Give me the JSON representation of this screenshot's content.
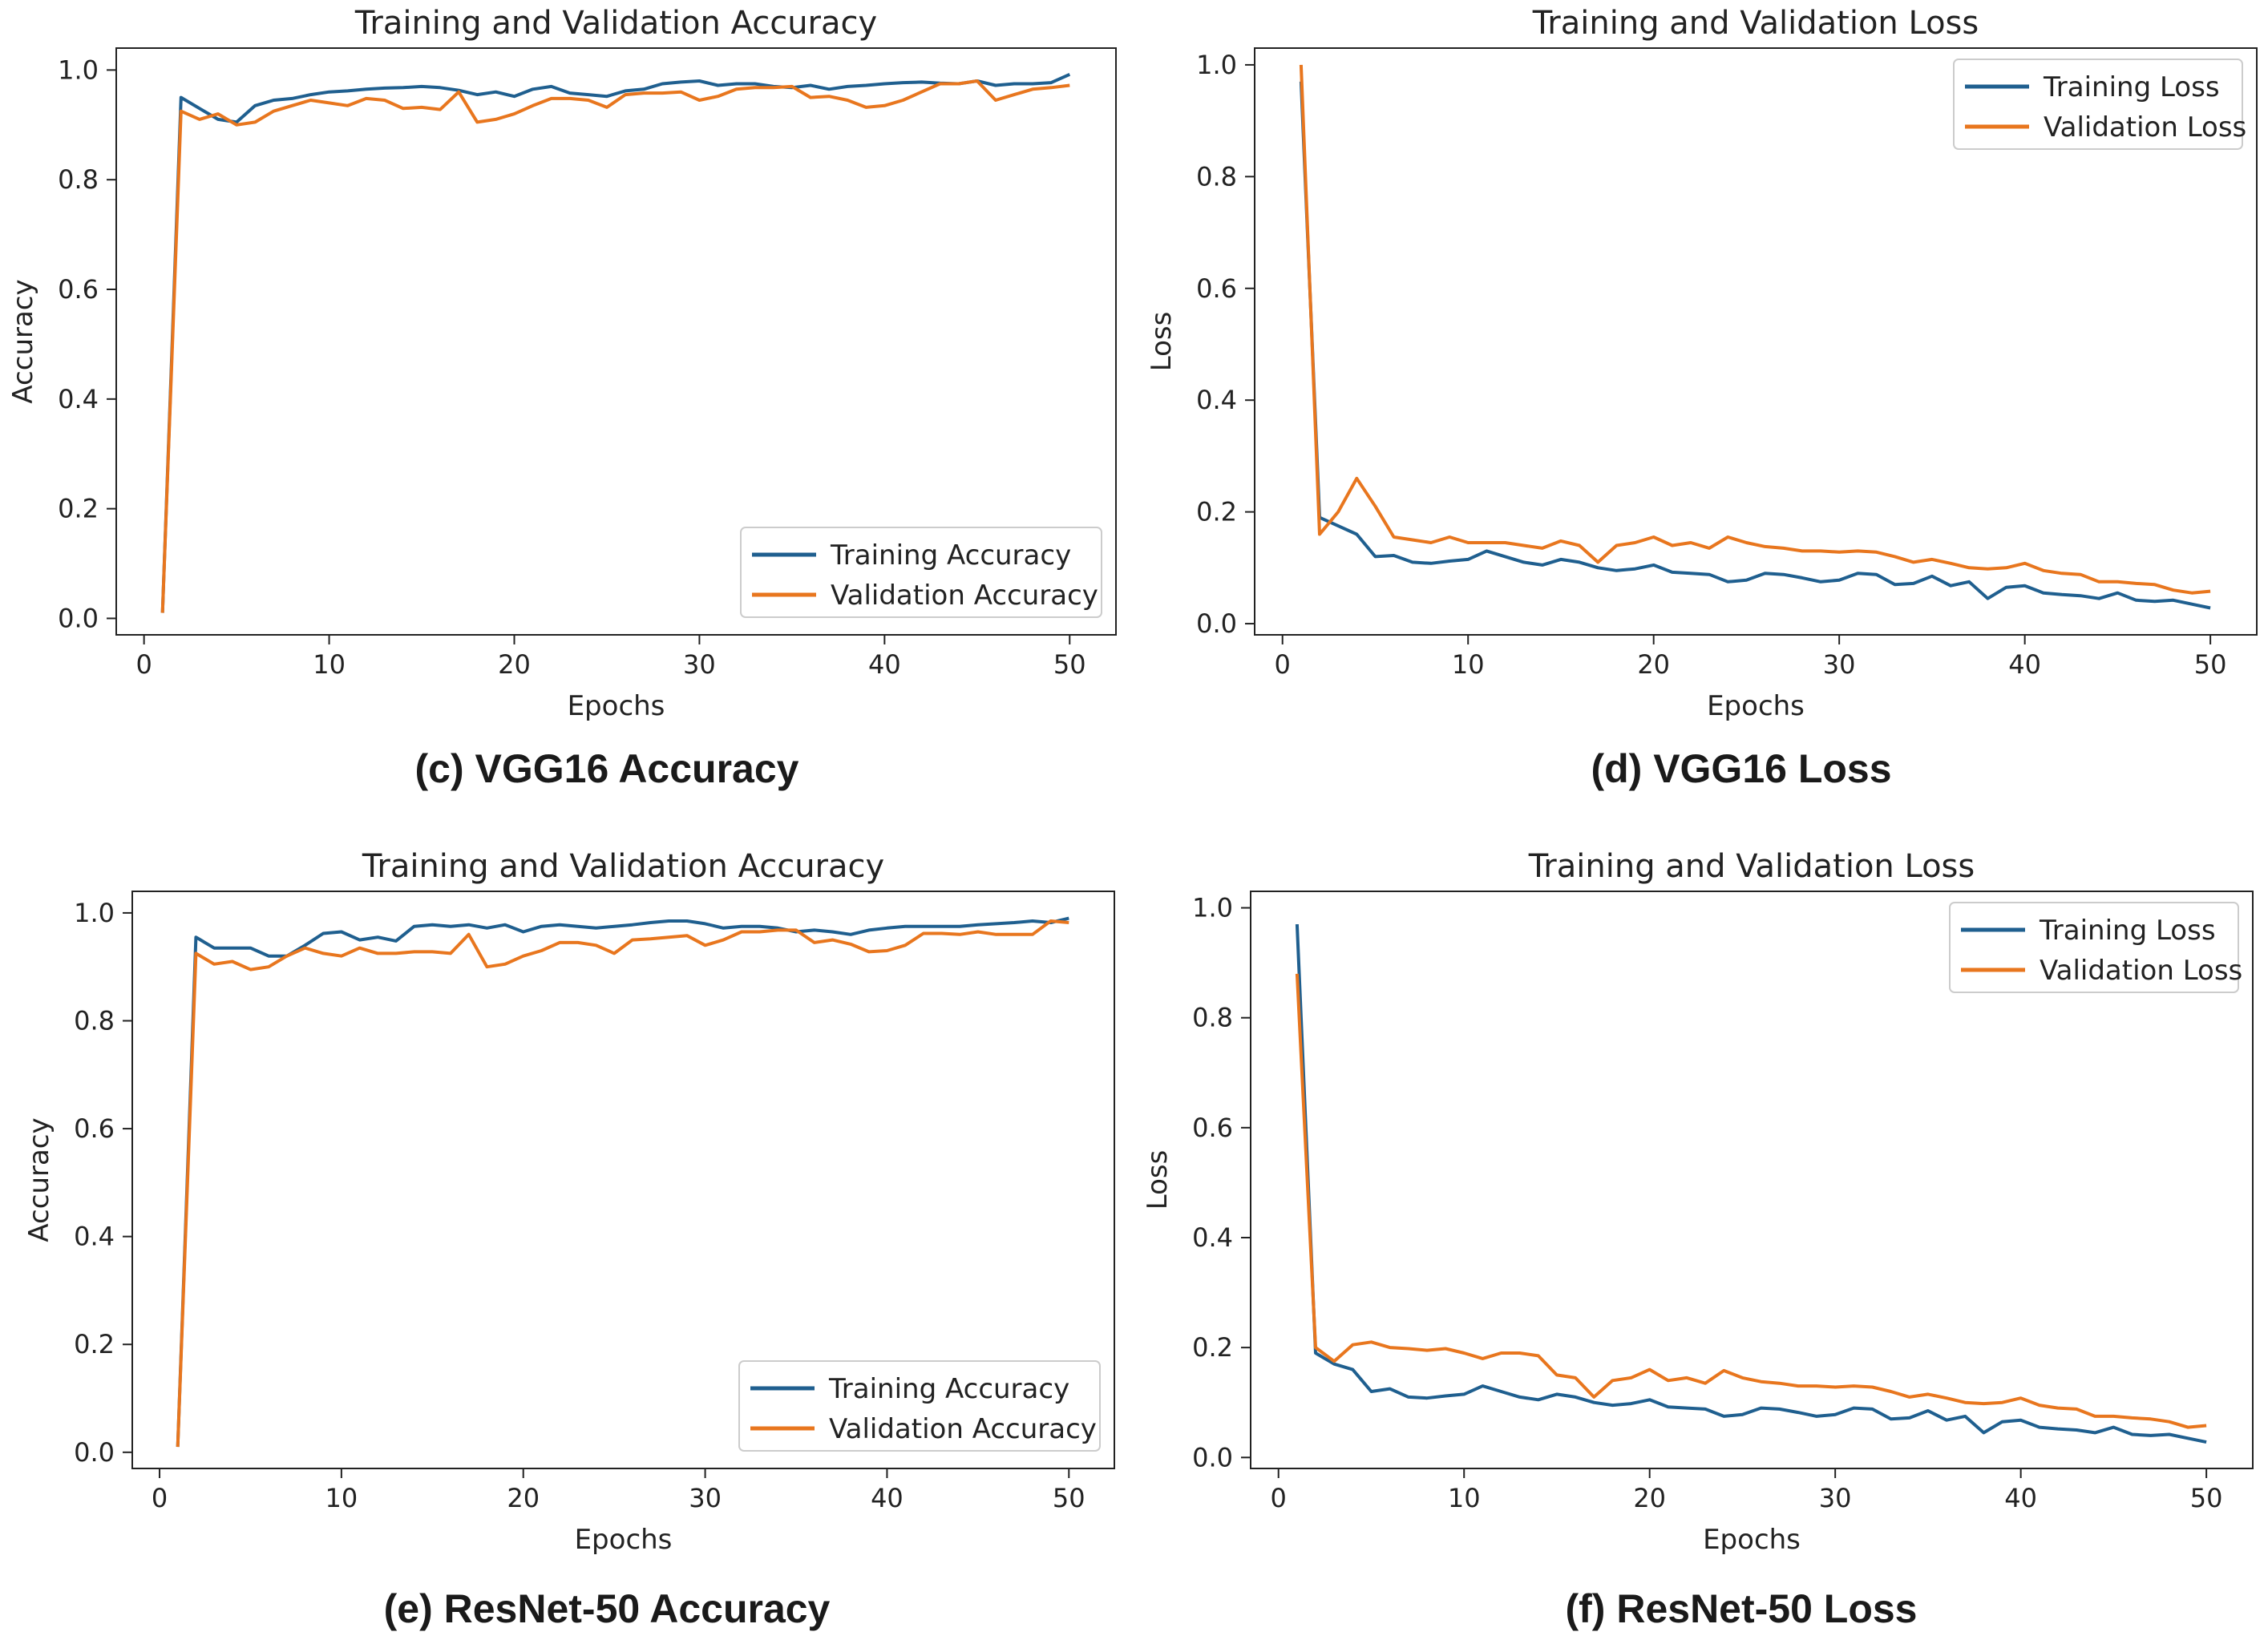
{
  "panels": [
    {
      "caption": "(c) VGG16 Accuracy",
      "chart_data": {
        "type": "line",
        "title": "Training and Validation Accuracy",
        "xlabel": "Epochs",
        "ylabel": "Accuracy",
        "xlim": [
          -1.5,
          52.5
        ],
        "ylim": [
          -0.03,
          1.04
        ],
        "xticks": [
          0,
          10,
          20,
          30,
          40,
          50
        ],
        "yticks": [
          0.0,
          0.2,
          0.4,
          0.6,
          0.8,
          1.0
        ],
        "legend_loc": "lower-right",
        "x": [
          1,
          2,
          3,
          4,
          5,
          6,
          7,
          8,
          9,
          10,
          11,
          12,
          13,
          14,
          15,
          16,
          17,
          18,
          19,
          20,
          21,
          22,
          23,
          24,
          25,
          26,
          27,
          28,
          29,
          30,
          31,
          32,
          33,
          34,
          35,
          36,
          37,
          38,
          39,
          40,
          41,
          42,
          43,
          44,
          45,
          46,
          47,
          48,
          49,
          50
        ],
        "series": [
          {
            "name": "Training Accuracy",
            "color": "#1f5f8f",
            "values": [
              0.01,
              0.95,
              0.93,
              0.91,
              0.905,
              0.935,
              0.945,
              0.948,
              0.955,
              0.96,
              0.962,
              0.965,
              0.967,
              0.968,
              0.97,
              0.968,
              0.963,
              0.955,
              0.96,
              0.952,
              0.965,
              0.97,
              0.958,
              0.955,
              0.952,
              0.962,
              0.965,
              0.975,
              0.978,
              0.98,
              0.972,
              0.975,
              0.975,
              0.97,
              0.968,
              0.972,
              0.965,
              0.97,
              0.972,
              0.975,
              0.977,
              0.978,
              0.976,
              0.975,
              0.98,
              0.972,
              0.975,
              0.975,
              0.977,
              0.992
            ]
          },
          {
            "name": "Validation Accuracy",
            "color": "#e8761e",
            "values": [
              0.01,
              0.925,
              0.91,
              0.92,
              0.9,
              0.905,
              0.925,
              0.935,
              0.945,
              0.94,
              0.935,
              0.948,
              0.945,
              0.93,
              0.932,
              0.928,
              0.96,
              0.905,
              0.91,
              0.92,
              0.935,
              0.948,
              0.948,
              0.945,
              0.932,
              0.955,
              0.958,
              0.958,
              0.96,
              0.945,
              0.952,
              0.965,
              0.968,
              0.968,
              0.97,
              0.95,
              0.952,
              0.945,
              0.932,
              0.935,
              0.945,
              0.96,
              0.975,
              0.975,
              0.98,
              0.945,
              0.955,
              0.965,
              0.968,
              0.972
            ]
          }
        ]
      }
    },
    {
      "caption": "(d) VGG16 Loss",
      "chart_data": {
        "type": "line",
        "title": "Training and Validation Loss",
        "xlabel": "Epochs",
        "ylabel": "Loss",
        "xlim": [
          -1.5,
          52.5
        ],
        "ylim": [
          -0.02,
          1.03
        ],
        "xticks": [
          0,
          10,
          20,
          30,
          40,
          50
        ],
        "yticks": [
          0.0,
          0.2,
          0.4,
          0.6,
          0.8,
          1.0
        ],
        "legend_loc": "upper-right",
        "x": [
          1,
          2,
          3,
          4,
          5,
          6,
          7,
          8,
          9,
          10,
          11,
          12,
          13,
          14,
          15,
          16,
          17,
          18,
          19,
          20,
          21,
          22,
          23,
          24,
          25,
          26,
          27,
          28,
          29,
          30,
          31,
          32,
          33,
          34,
          35,
          36,
          37,
          38,
          39,
          40,
          41,
          42,
          43,
          44,
          45,
          46,
          47,
          48,
          49,
          50
        ],
        "series": [
          {
            "name": "Training Loss",
            "color": "#1f5f8f",
            "values": [
              0.97,
              0.19,
              0.175,
              0.16,
              0.12,
              0.122,
              0.11,
              0.108,
              0.112,
              0.115,
              0.13,
              0.12,
              0.11,
              0.105,
              0.115,
              0.11,
              0.1,
              0.095,
              0.098,
              0.105,
              0.092,
              0.09,
              0.088,
              0.075,
              0.078,
              0.09,
              0.088,
              0.082,
              0.075,
              0.078,
              0.09,
              0.088,
              0.07,
              0.072,
              0.085,
              0.068,
              0.075,
              0.045,
              0.065,
              0.068,
              0.055,
              0.052,
              0.05,
              0.045,
              0.055,
              0.042,
              0.04,
              0.042,
              0.035,
              0.028
            ]
          },
          {
            "name": "Validation Loss",
            "color": "#e8761e",
            "values": [
              1.0,
              0.16,
              0.2,
              0.26,
              0.21,
              0.155,
              0.15,
              0.145,
              0.155,
              0.145,
              0.145,
              0.145,
              0.14,
              0.135,
              0.148,
              0.14,
              0.11,
              0.14,
              0.145,
              0.155,
              0.14,
              0.145,
              0.135,
              0.155,
              0.145,
              0.138,
              0.135,
              0.13,
              0.13,
              0.128,
              0.13,
              0.128,
              0.12,
              0.11,
              0.115,
              0.108,
              0.1,
              0.098,
              0.1,
              0.108,
              0.095,
              0.09,
              0.088,
              0.075,
              0.075,
              0.072,
              0.07,
              0.06,
              0.055,
              0.058
            ]
          }
        ]
      }
    },
    {
      "caption": "(e) ResNet-50 Accuracy",
      "chart_data": {
        "type": "line",
        "title": "Training and Validation Accuracy",
        "xlabel": "Epochs",
        "ylabel": "Accuracy",
        "xlim": [
          -1.5,
          52.5
        ],
        "ylim": [
          -0.03,
          1.04
        ],
        "xticks": [
          0,
          10,
          20,
          30,
          40,
          50
        ],
        "yticks": [
          0.0,
          0.2,
          0.4,
          0.6,
          0.8,
          1.0
        ],
        "legend_loc": "lower-right",
        "x": [
          1,
          2,
          3,
          4,
          5,
          6,
          7,
          8,
          9,
          10,
          11,
          12,
          13,
          14,
          15,
          16,
          17,
          18,
          19,
          20,
          21,
          22,
          23,
          24,
          25,
          26,
          27,
          28,
          29,
          30,
          31,
          32,
          33,
          34,
          35,
          36,
          37,
          38,
          39,
          40,
          41,
          42,
          43,
          44,
          45,
          46,
          47,
          48,
          49,
          50
        ],
        "series": [
          {
            "name": "Training Accuracy",
            "color": "#1f5f8f",
            "values": [
              0.01,
              0.955,
              0.935,
              0.935,
              0.935,
              0.92,
              0.92,
              0.94,
              0.962,
              0.965,
              0.95,
              0.955,
              0.948,
              0.975,
              0.978,
              0.975,
              0.978,
              0.972,
              0.978,
              0.965,
              0.975,
              0.978,
              0.975,
              0.972,
              0.975,
              0.978,
              0.982,
              0.985,
              0.985,
              0.98,
              0.972,
              0.975,
              0.975,
              0.972,
              0.965,
              0.968,
              0.965,
              0.96,
              0.968,
              0.972,
              0.975,
              0.975,
              0.975,
              0.975,
              0.978,
              0.98,
              0.982,
              0.985,
              0.982,
              0.99
            ]
          },
          {
            "name": "Validation Accuracy",
            "color": "#e8761e",
            "values": [
              0.01,
              0.925,
              0.905,
              0.91,
              0.895,
              0.9,
              0.92,
              0.935,
              0.925,
              0.92,
              0.935,
              0.925,
              0.925,
              0.928,
              0.928,
              0.925,
              0.96,
              0.9,
              0.905,
              0.92,
              0.93,
              0.945,
              0.945,
              0.94,
              0.925,
              0.95,
              0.952,
              0.955,
              0.958,
              0.94,
              0.95,
              0.965,
              0.965,
              0.968,
              0.968,
              0.945,
              0.95,
              0.942,
              0.928,
              0.93,
              0.94,
              0.962,
              0.962,
              0.96,
              0.965,
              0.96,
              0.96,
              0.96,
              0.985,
              0.982
            ]
          }
        ]
      }
    },
    {
      "caption": "(f) ResNet-50 Loss",
      "chart_data": {
        "type": "line",
        "title": "Training and Validation Loss",
        "xlabel": "Epochs",
        "ylabel": "Loss",
        "xlim": [
          -1.5,
          52.5
        ],
        "ylim": [
          -0.02,
          1.03
        ],
        "xticks": [
          0,
          10,
          20,
          30,
          40,
          50
        ],
        "yticks": [
          0.0,
          0.2,
          0.4,
          0.6,
          0.8,
          1.0
        ],
        "legend_loc": "upper-right",
        "x": [
          1,
          2,
          3,
          4,
          5,
          6,
          7,
          8,
          9,
          10,
          11,
          12,
          13,
          14,
          15,
          16,
          17,
          18,
          19,
          20,
          21,
          22,
          23,
          24,
          25,
          26,
          27,
          28,
          29,
          30,
          31,
          32,
          33,
          34,
          35,
          36,
          37,
          38,
          39,
          40,
          41,
          42,
          43,
          44,
          45,
          46,
          47,
          48,
          49,
          50
        ],
        "series": [
          {
            "name": "Training Loss",
            "color": "#1f5f8f",
            "values": [
              0.97,
              0.19,
              0.17,
              0.16,
              0.12,
              0.125,
              0.11,
              0.108,
              0.112,
              0.115,
              0.13,
              0.12,
              0.11,
              0.105,
              0.115,
              0.11,
              0.1,
              0.095,
              0.098,
              0.105,
              0.092,
              0.09,
              0.088,
              0.075,
              0.078,
              0.09,
              0.088,
              0.082,
              0.075,
              0.078,
              0.09,
              0.088,
              0.07,
              0.072,
              0.085,
              0.068,
              0.075,
              0.045,
              0.065,
              0.068,
              0.055,
              0.052,
              0.05,
              0.045,
              0.055,
              0.042,
              0.04,
              0.042,
              0.035,
              0.028
            ]
          },
          {
            "name": "Validation Loss",
            "color": "#e8761e",
            "values": [
              0.88,
              0.2,
              0.175,
              0.205,
              0.21,
              0.2,
              0.198,
              0.195,
              0.198,
              0.19,
              0.18,
              0.19,
              0.19,
              0.185,
              0.15,
              0.145,
              0.11,
              0.14,
              0.145,
              0.16,
              0.14,
              0.145,
              0.135,
              0.158,
              0.145,
              0.138,
              0.135,
              0.13,
              0.13,
              0.128,
              0.13,
              0.128,
              0.12,
              0.11,
              0.115,
              0.108,
              0.1,
              0.098,
              0.1,
              0.108,
              0.095,
              0.09,
              0.088,
              0.075,
              0.075,
              0.072,
              0.07,
              0.065,
              0.055,
              0.058
            ]
          }
        ]
      }
    }
  ]
}
